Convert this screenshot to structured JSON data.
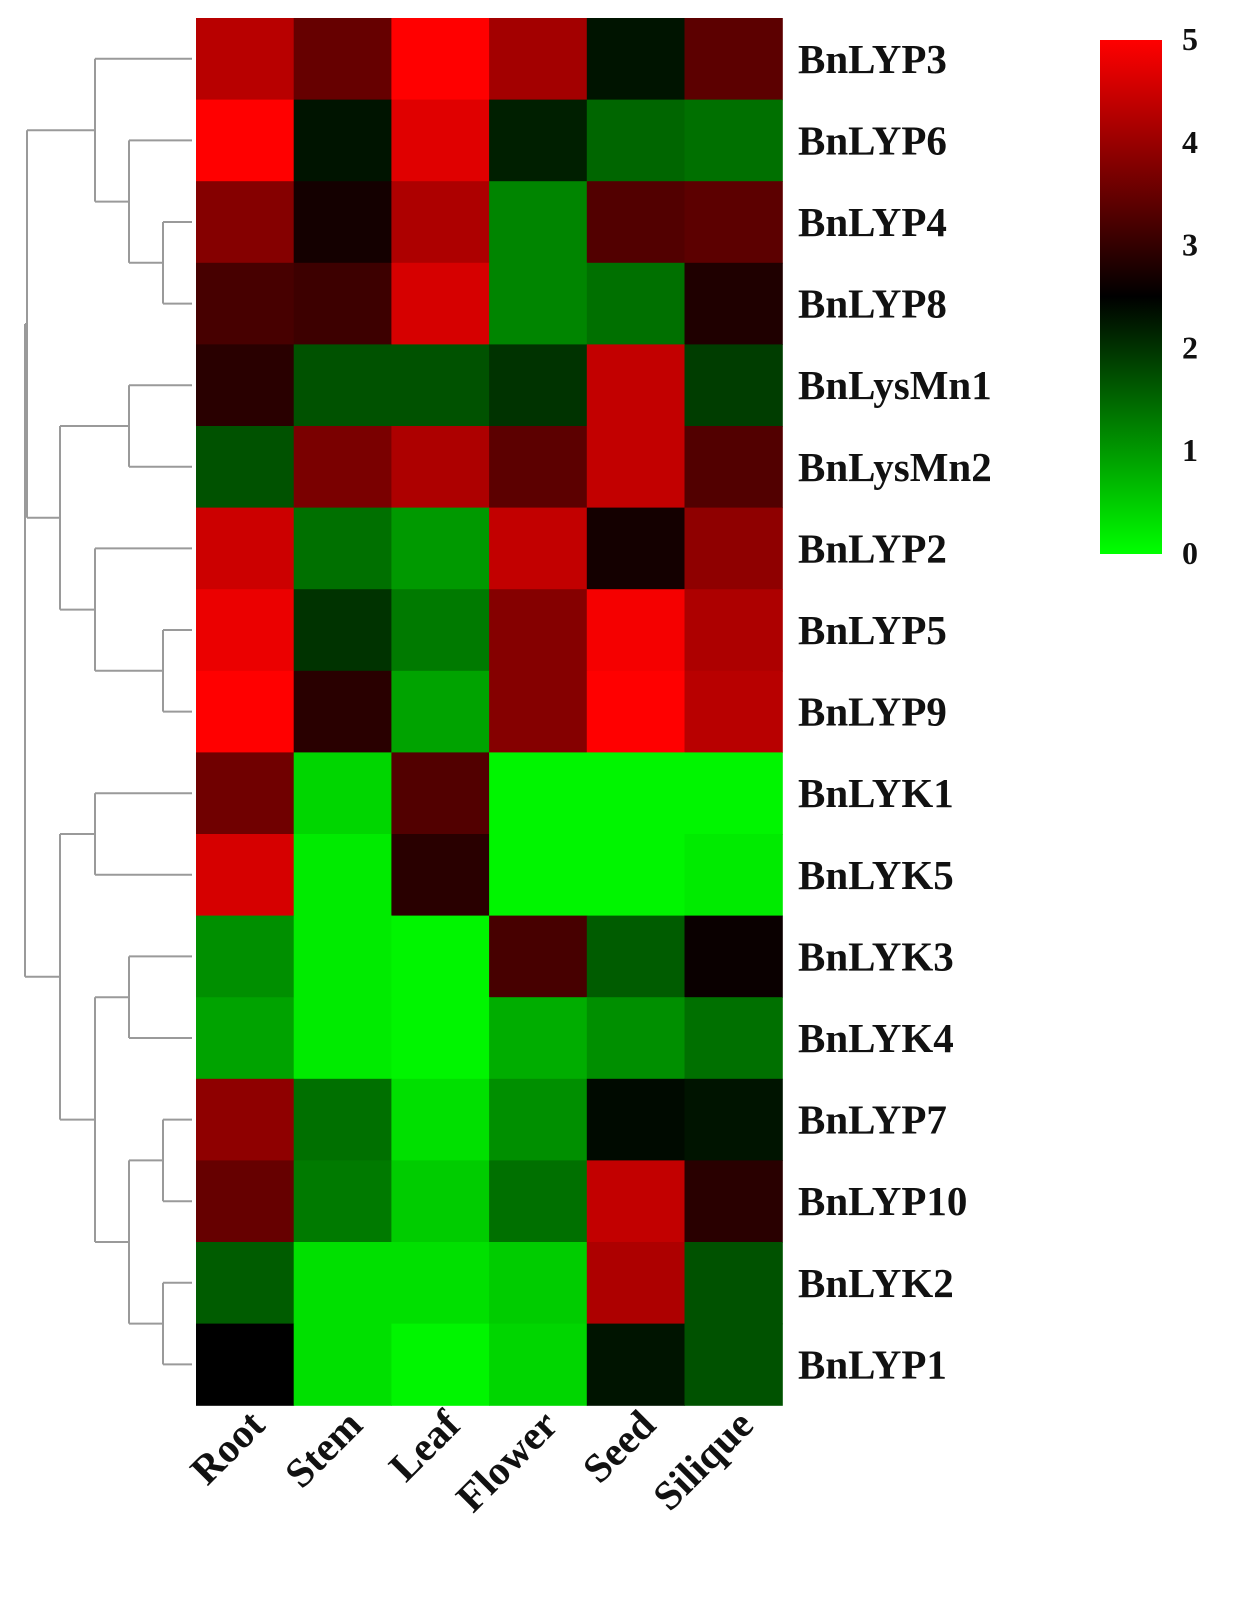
{
  "chart_data": {
    "type": "heatmap",
    "title": "",
    "xlabel": "",
    "ylabel": "",
    "columns": [
      "Root",
      "Stem",
      "Leaf",
      "Flower",
      "Seed",
      "Silique"
    ],
    "rows": [
      "BnLYP3",
      "BnLYP6",
      "BnLYP4",
      "BnLYP8",
      "BnLysMn1",
      "BnLysMn2",
      "BnLYP2",
      "BnLYP5",
      "BnLYP9",
      "BnLYK1",
      "BnLYK5",
      "BnLYK3",
      "BnLYK4",
      "BnLYP7",
      "BnLYP10",
      "BnLYK2",
      "BnLYP1"
    ],
    "values": [
      [
        4.3,
        3.5,
        5.0,
        4.1,
        2.3,
        3.4
      ],
      [
        5.0,
        2.3,
        4.7,
        2.2,
        1.5,
        1.4
      ],
      [
        3.8,
        2.7,
        4.2,
        1.2,
        3.3,
        3.4
      ],
      [
        3.2,
        3.1,
        4.6,
        1.2,
        1.4,
        2.8
      ],
      [
        2.9,
        1.7,
        1.7,
        2.0,
        4.4,
        1.9
      ],
      [
        1.7,
        3.7,
        4.2,
        3.4,
        4.4,
        3.3
      ],
      [
        4.5,
        1.4,
        1.0,
        4.4,
        2.7,
        3.9
      ],
      [
        4.8,
        2.0,
        1.3,
        3.8,
        4.9,
        4.2
      ],
      [
        5.0,
        2.9,
        0.9,
        3.8,
        5.0,
        4.3
      ],
      [
        3.6,
        0.4,
        3.3,
        0.1,
        0.1,
        0.1
      ],
      [
        4.6,
        0.2,
        2.9,
        0.1,
        0.1,
        0.2
      ],
      [
        1.1,
        0.2,
        0.1,
        3.2,
        1.6,
        2.6
      ],
      [
        0.9,
        0.2,
        0.1,
        0.8,
        1.1,
        1.4
      ],
      [
        3.9,
        1.4,
        0.3,
        1.1,
        2.4,
        2.3
      ],
      [
        3.5,
        1.3,
        0.5,
        1.4,
        4.4,
        2.9
      ],
      [
        1.6,
        0.3,
        0.3,
        0.5,
        4.2,
        1.7
      ],
      [
        2.5,
        0.3,
        0.1,
        0.4,
        2.3,
        1.7
      ]
    ],
    "color_scale": {
      "min": 0,
      "mid": 2.5,
      "max": 5,
      "min_color": "#00ff00",
      "mid_color": "#000000",
      "max_color": "#ff0000",
      "ticks": [
        0,
        1,
        2,
        3,
        4,
        5
      ],
      "tick_labels": [
        "0",
        "1",
        "2",
        "3",
        "4",
        "5"
      ]
    },
    "row_dendrogram": true,
    "row_label_position": "right",
    "column_label_rotation": -45,
    "legend_placement": "top-right",
    "grid": false
  }
}
